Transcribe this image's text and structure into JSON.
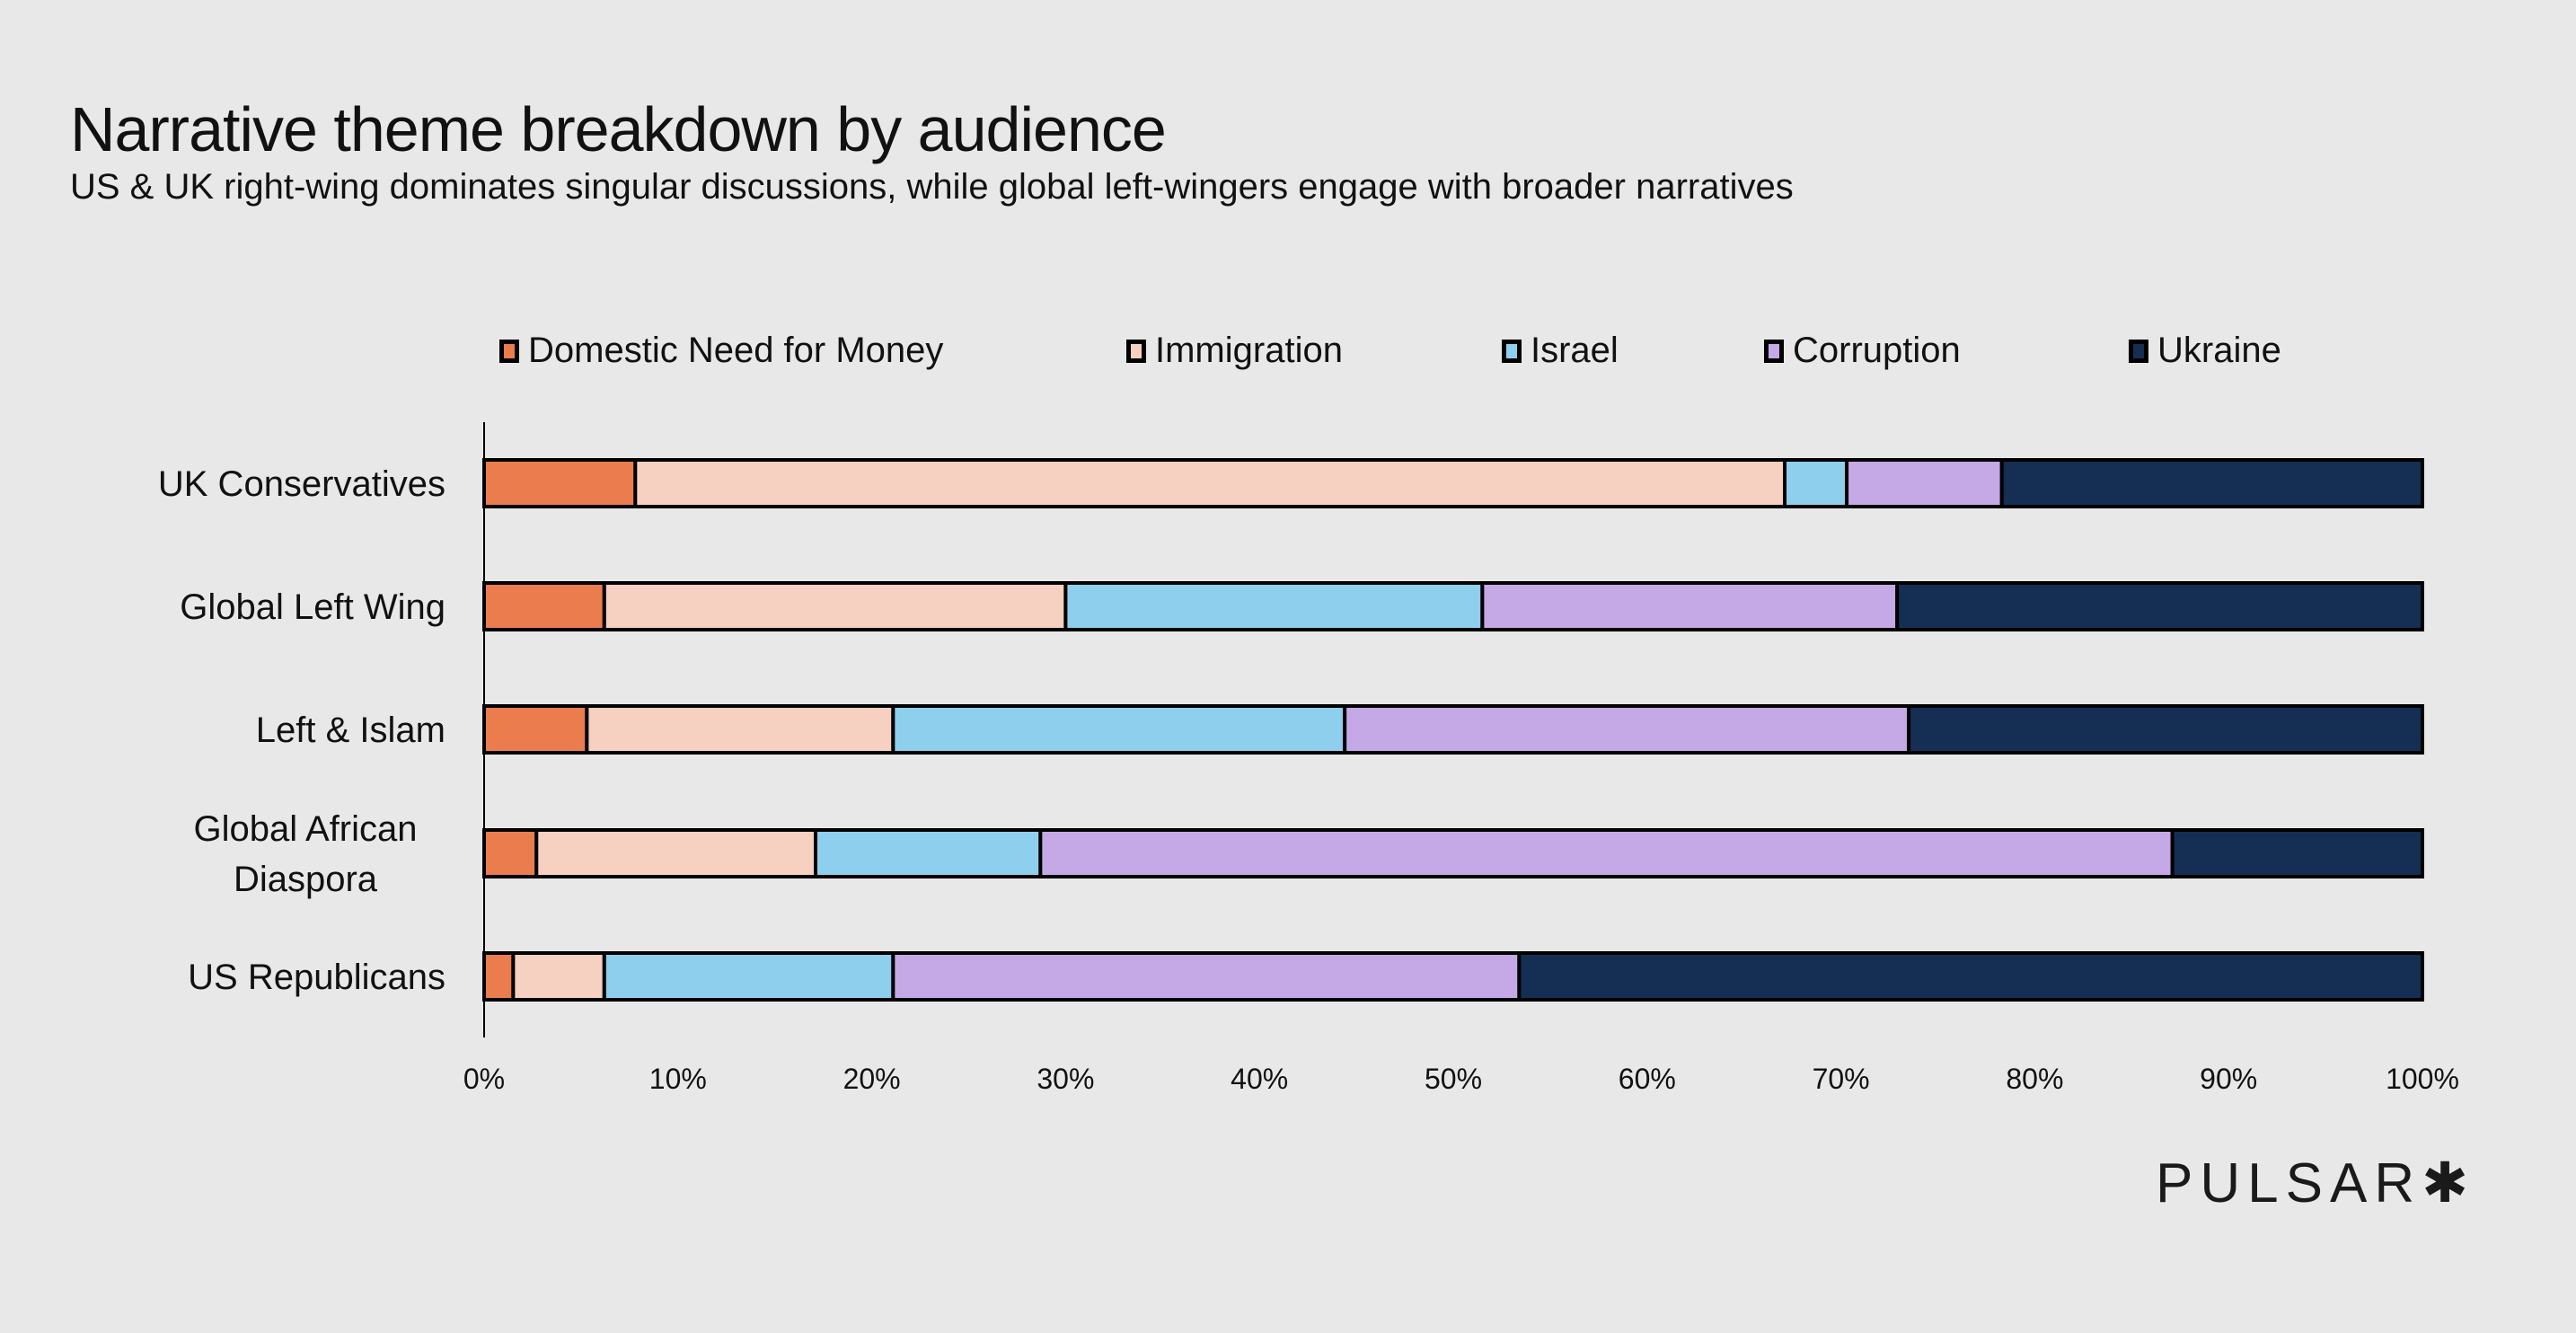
{
  "title": "Narrative theme breakdown by audience",
  "subtitle": "US & UK right-wing dominates singular discussions, while global left-wingers engage with broader narratives",
  "logo": "PULSAR✱",
  "chart_data": {
    "type": "bar",
    "orientation": "horizontal",
    "stacked": "percent",
    "title": "Narrative theme breakdown by audience",
    "subtitle": "US & UK right-wing dominates singular discussions, while global left-wingers engage with broader narratives",
    "xlabel": "",
    "ylabel": "",
    "xlim": [
      0,
      100
    ],
    "xticks": [
      "0%",
      "10%",
      "20%",
      "30%",
      "40%",
      "50%",
      "60%",
      "70%",
      "80%",
      "90%",
      "100%"
    ],
    "legend_position": "top",
    "grid": false,
    "categories": [
      "UK Conservatives",
      "Global Left Wing",
      "Left & Islam",
      "Global African Diaspora",
      "US Republicans"
    ],
    "series": [
      {
        "name": "Domestic Need for Money",
        "color": "#eb7c4e",
        "values": [
          7.8,
          6.2,
          5.3,
          2.7,
          1.5
        ]
      },
      {
        "name": "Immigration",
        "color": "#f6d0c0",
        "values": [
          59.3,
          23.8,
          15.8,
          14.4,
          4.7
        ]
      },
      {
        "name": "Israel",
        "color": "#8ecfee",
        "values": [
          3.2,
          21.5,
          23.3,
          11.6,
          14.9
        ]
      },
      {
        "name": "Corruption",
        "color": "#c5a9e6",
        "values": [
          8.0,
          21.4,
          29.1,
          58.4,
          32.3
        ]
      },
      {
        "name": "Ukraine",
        "color": "#152e54",
        "values": [
          21.7,
          27.1,
          26.5,
          12.9,
          46.6
        ]
      }
    ]
  }
}
